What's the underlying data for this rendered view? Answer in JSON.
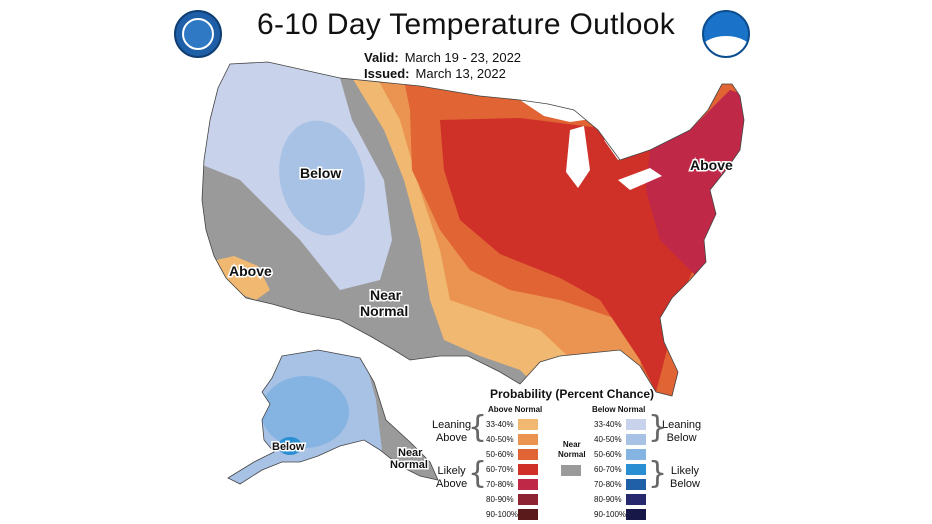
{
  "header": {
    "title": "6-10 Day Temperature Outlook",
    "valid_label": "Valid:",
    "valid_value": "March 19 - 23, 2022",
    "issued_label": "Issued:",
    "issued_value": "March 13, 2022"
  },
  "logos": {
    "left": "doc-seal-icon",
    "right": "noaa-logo-icon"
  },
  "map_labels": {
    "below": "Below",
    "above_west": "Above",
    "near": "Near",
    "normal": "Normal",
    "above_east": "Above",
    "alaska_below": "Below",
    "alaska_near": "Near",
    "alaska_normal": "Normal"
  },
  "legend": {
    "title": "Probability (Percent Chance)",
    "above_header": "Above Normal",
    "below_header": "Below Normal",
    "near_normal_line1": "Near",
    "near_normal_line2": "Normal",
    "leaning_above_1": "Leaning",
    "leaning_above_2": "Above",
    "likely_above_1": "Likely",
    "likely_above_2": "Above",
    "leaning_below_1": "Leaning",
    "leaning_below_2": "Below",
    "likely_below_1": "Likely",
    "likely_below_2": "Below",
    "ranges": [
      "33-40%",
      "40-50%",
      "50-60%",
      "60-70%",
      "70-80%",
      "80-90%",
      "90-100%"
    ],
    "above_colors": [
      "#f0b870",
      "#eb9350",
      "#e06434",
      "#cf3028",
      "#c02848",
      "#8c2434",
      "#5a1a1c"
    ],
    "below_colors": [
      "#c8d2ea",
      "#a8c2e6",
      "#86b4e2",
      "#2a8fd2",
      "#2060a8",
      "#28286e",
      "#181848"
    ],
    "near_color": "#9a9a9a"
  }
}
